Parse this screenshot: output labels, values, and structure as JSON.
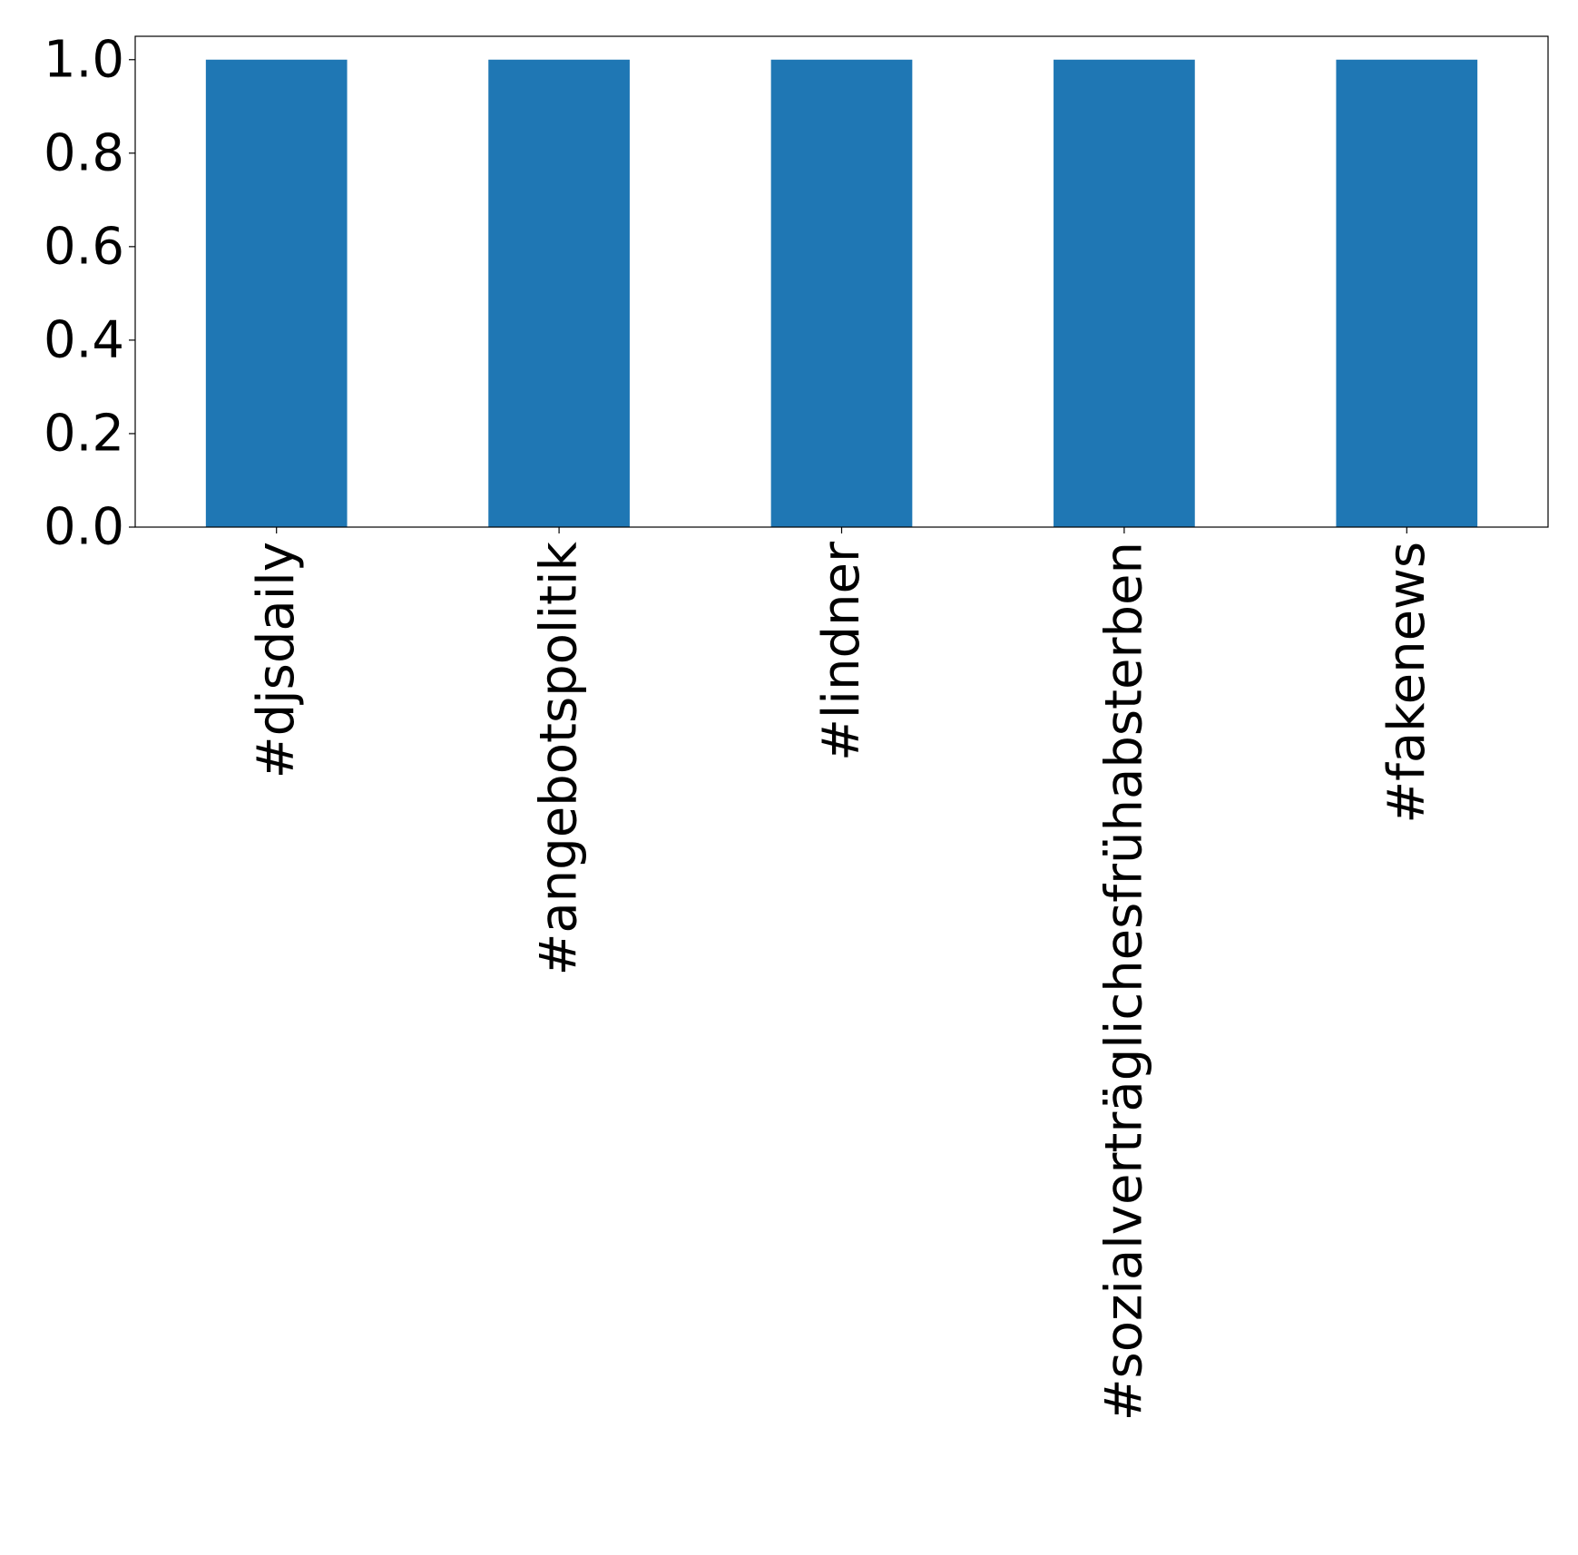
{
  "colors": {
    "bar": "#1f77b4",
    "axis": "#000000",
    "background": "#ffffff"
  },
  "chart_data": {
    "type": "bar",
    "categories": [
      "#djsdaily",
      "#angebotspolitik",
      "#lindner",
      "#sozialverträglichesfrühabsterben",
      "#fakenews"
    ],
    "values": [
      1,
      1,
      1,
      1,
      1
    ],
    "ylim": [
      0,
      1.05
    ],
    "yticks": [
      0.0,
      0.2,
      0.4,
      0.6,
      0.8,
      1.0
    ],
    "ytick_labels": [
      "0.0",
      "0.2",
      "0.4",
      "0.6",
      "0.8",
      "1.0"
    ],
    "xtick_rotation": "vertical",
    "grid": false,
    "legend": "none",
    "title": "",
    "xlabel": "",
    "ylabel": ""
  }
}
